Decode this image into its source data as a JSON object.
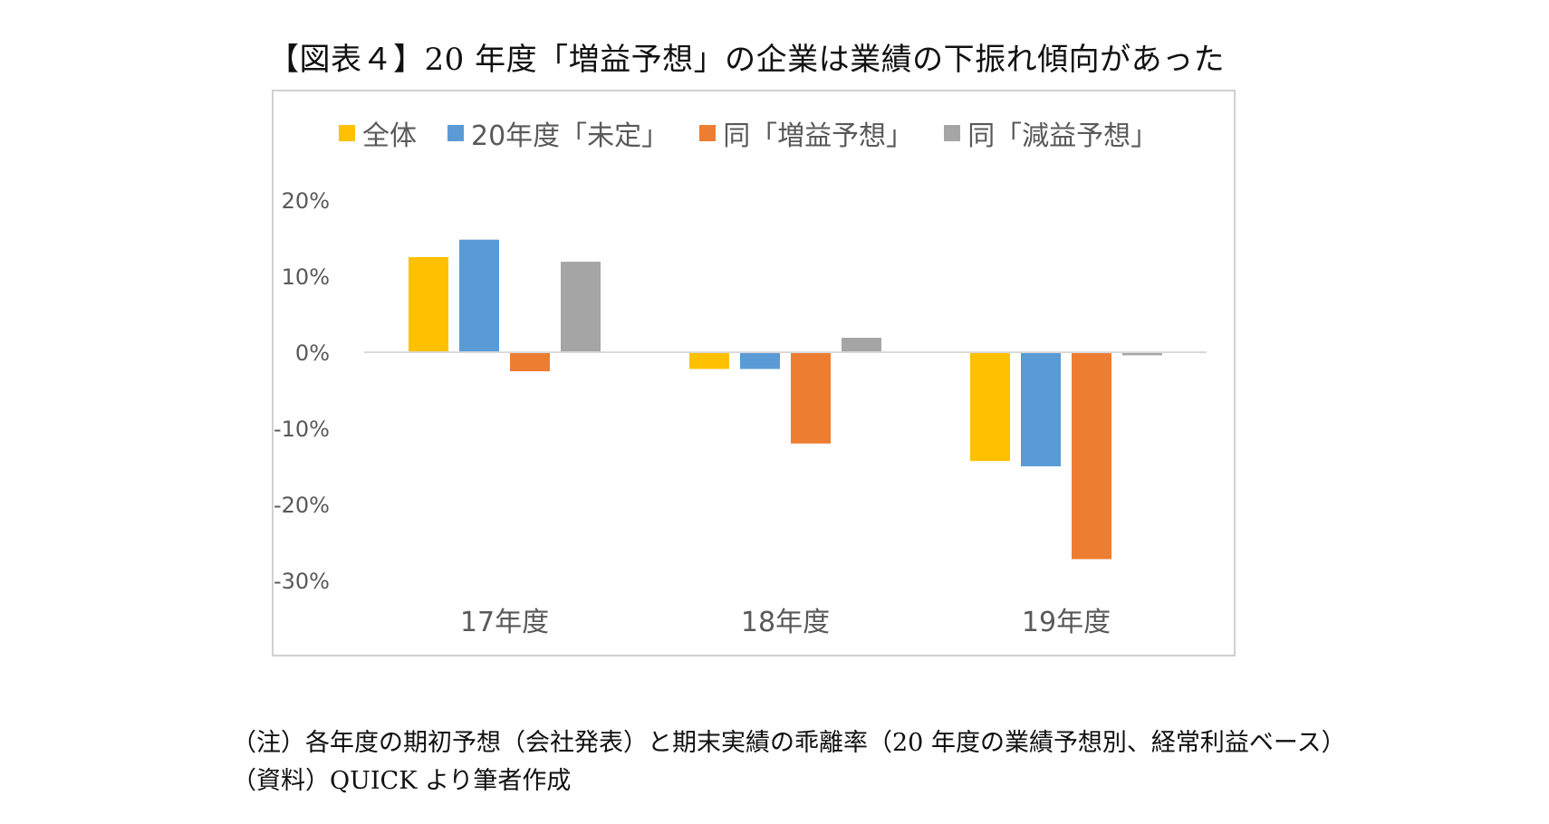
{
  "title": "【図表４】20 年度「増益予想」の企業は業績の下振れ傾向があった",
  "notes": {
    "note": "（注）各年度の期初予想（会社発表）と期末実績の乖離率（20 年度の業績予想別、経常利益ベース）",
    "source": "（資料）QUICK より筆者作成"
  },
  "chart_data": {
    "type": "bar",
    "categories": [
      "17年度",
      "18年度",
      "19年度"
    ],
    "series": [
      {
        "name": "全体",
        "color": "#FFC000",
        "values": [
          12.5,
          -2.2,
          -14.3
        ]
      },
      {
        "name": "20年度「未定」",
        "color": "#5B9BD5",
        "values": [
          14.8,
          -2.2,
          -15.0
        ]
      },
      {
        "name": "同「増益予想」",
        "color": "#ED7D31",
        "values": [
          -2.5,
          -12.0,
          -27.2
        ]
      },
      {
        "name": "同「減益予想」",
        "color": "#A5A5A5",
        "values": [
          11.9,
          1.9,
          -0.4
        ]
      }
    ],
    "ylim": [
      -30,
      20
    ],
    "yticks": [
      20,
      10,
      0,
      -10,
      -20,
      -30
    ],
    "ytick_labels": [
      "20%",
      "10%",
      "0%",
      "-10%",
      "-20%",
      "-30%"
    ],
    "title": "",
    "xlabel": "",
    "ylabel": "",
    "grid": false,
    "legend_position": "top"
  }
}
